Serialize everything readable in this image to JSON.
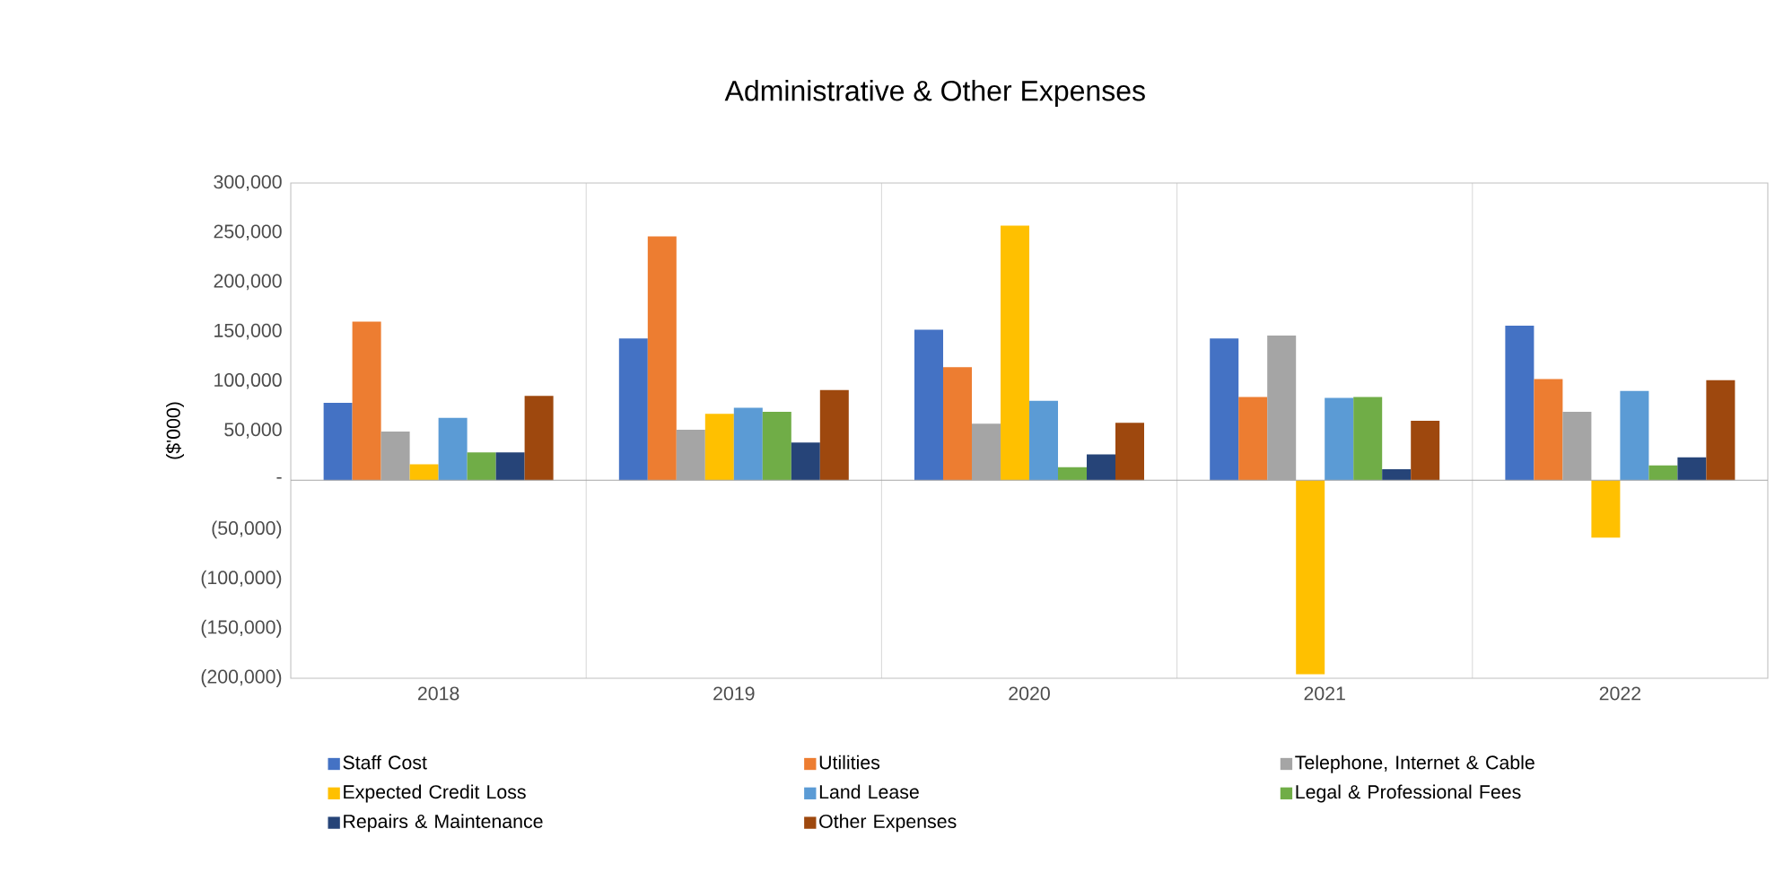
{
  "chart_data": {
    "type": "bar",
    "title": "Administrative & Other Expenses",
    "ylabel": "($'000)",
    "categories": [
      "2018",
      "2019",
      "2020",
      "2021",
      "2022"
    ],
    "series": [
      {
        "name": "Staff Cost",
        "color": "#4472c4",
        "values": [
          78000,
          143000,
          152000,
          143000,
          156000
        ]
      },
      {
        "name": "Utilities",
        "color": "#ed7d31",
        "values": [
          160000,
          246000,
          114000,
          84000,
          102000
        ]
      },
      {
        "name": "Telephone, Internet & Cable",
        "color": "#a5a5a5",
        "values": [
          49000,
          51000,
          57000,
          146000,
          69000
        ]
      },
      {
        "name": "Expected Credit Loss",
        "color": "#ffc000",
        "values": [
          16000,
          67000,
          257000,
          -196000,
          -58000
        ]
      },
      {
        "name": "Land Lease",
        "color": "#5b9bd5",
        "values": [
          63000,
          73000,
          80000,
          83000,
          90000
        ]
      },
      {
        "name": "Legal & Professional Fees",
        "color": "#70ad47",
        "values": [
          28000,
          69000,
          13000,
          84000,
          15000
        ]
      },
      {
        "name": "Repairs & Maintenance",
        "color": "#264478",
        "values": [
          28000,
          38000,
          26000,
          11000,
          23000
        ]
      },
      {
        "name": "Other Expenses",
        "color": "#9e480e",
        "values": [
          85000,
          91000,
          58000,
          60000,
          101000
        ]
      }
    ],
    "ylim": [
      -200000,
      300000
    ],
    "yticks": [
      {
        "value": 300000,
        "label": "300,000"
      },
      {
        "value": 250000,
        "label": "250,000"
      },
      {
        "value": 200000,
        "label": "200,000"
      },
      {
        "value": 150000,
        "label": "150,000"
      },
      {
        "value": 100000,
        "label": "100,000"
      },
      {
        "value": 50000,
        "label": "50,000"
      },
      {
        "value": 0,
        "label": "-"
      },
      {
        "value": -50000,
        "label": "(50,000)"
      },
      {
        "value": -100000,
        "label": "(100,000)"
      },
      {
        "value": -150000,
        "label": "(150,000)"
      },
      {
        "value": -200000,
        "label": "(200,000)"
      }
    ],
    "grid": "x",
    "legend": "bottom"
  }
}
